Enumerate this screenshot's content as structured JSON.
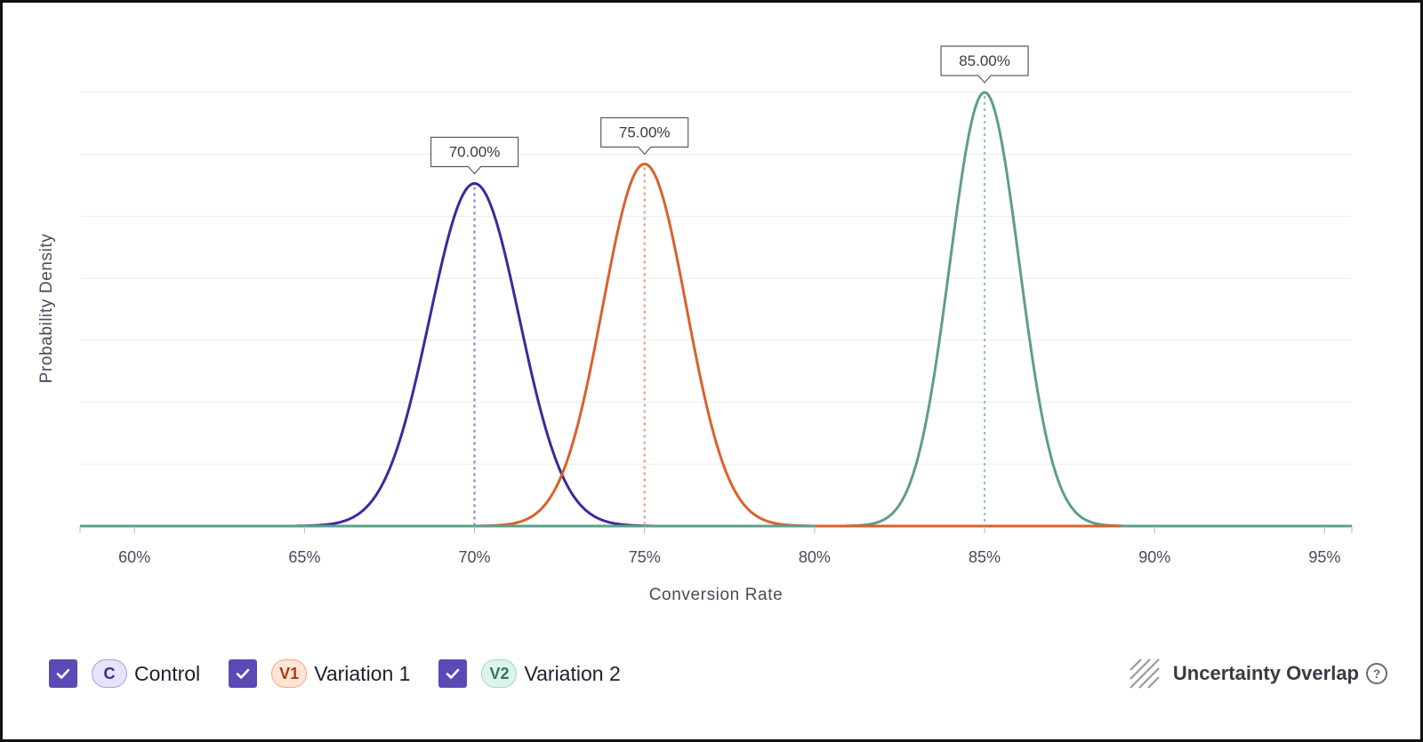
{
  "chart_data": {
    "type": "line",
    "xlabel": "Conversion Rate",
    "ylabel": "Probability Density",
    "xlim": [
      0.584,
      0.958
    ],
    "x_ticks": [
      {
        "value": 0.6,
        "label": "60%"
      },
      {
        "value": 0.65,
        "label": "65%"
      },
      {
        "value": 0.7,
        "label": "70%"
      },
      {
        "value": 0.75,
        "label": "75%"
      },
      {
        "value": 0.8,
        "label": "80%"
      },
      {
        "value": 0.85,
        "label": "85%"
      },
      {
        "value": 0.9,
        "label": "90%"
      },
      {
        "value": 0.95,
        "label": "95%"
      }
    ],
    "ylim": [
      0,
      1.0
    ],
    "grid": true,
    "series": [
      {
        "name": "Control",
        "badge": "C",
        "mean": 0.7,
        "sd": 0.0132,
        "relative_peak": 0.79,
        "color": "#3b2a9a",
        "dash_color": "#8b82d6",
        "peak_label": "70.00%",
        "checked": true
      },
      {
        "name": "Variation 1",
        "badge": "V1",
        "mean": 0.75,
        "sd": 0.0123,
        "relative_peak": 0.835,
        "color": "#d9622b",
        "dash_color": "#ef9c7a",
        "peak_label": "75.00%",
        "checked": true
      },
      {
        "name": "Variation 2",
        "badge": "V2",
        "mean": 0.85,
        "sd": 0.0102,
        "relative_peak": 1.0,
        "color": "#5e9e8a",
        "dash_color": "#93c4b4",
        "peak_label": "85.00%",
        "checked": true
      }
    ]
  },
  "legend": {
    "items": [
      {
        "badge": "C",
        "label": "Control",
        "badge_bg": "#e7e3fb",
        "badge_border": "#a99ee6",
        "badge_color": "#3b2a9a"
      },
      {
        "badge": "V1",
        "label": "Variation 1",
        "badge_bg": "#fde6d6",
        "badge_border": "#f0a880",
        "badge_color": "#a63d12"
      },
      {
        "badge": "V2",
        "label": "Variation 2",
        "badge_bg": "#ddf4ea",
        "badge_border": "#9fd8c2",
        "badge_color": "#2e7561"
      }
    ],
    "checkbox_color": "#5b49b6",
    "overlap_label": "Uncertainty Overlap",
    "overlap_icon": "diagonal-hatch-icon",
    "help_icon": "question-circle-icon",
    "help_glyph": "?"
  }
}
